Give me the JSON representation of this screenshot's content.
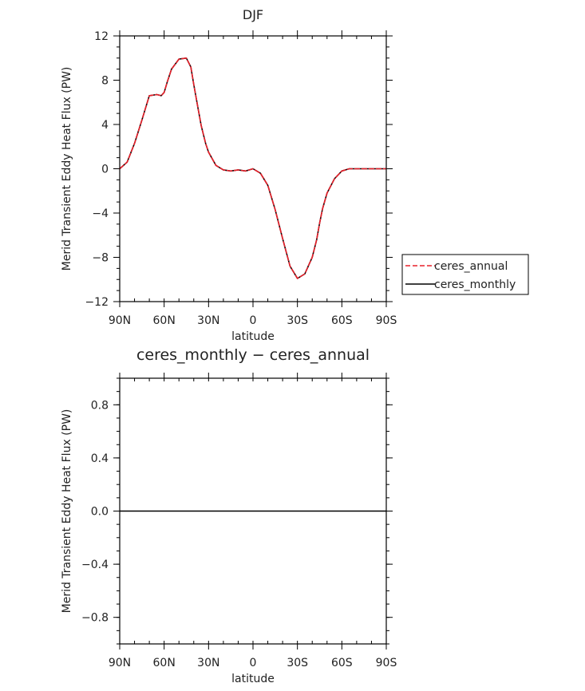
{
  "chart_data": [
    {
      "type": "line",
      "title": "DJF",
      "xlabel": "latitude",
      "ylabel": "Merid Transient Eddy Heat Flux (PW)",
      "xlim": [
        90,
        -90
      ],
      "ylim": [
        -12,
        12
      ],
      "x_ticks": [
        {
          "value": 90,
          "label": "90N"
        },
        {
          "value": 60,
          "label": "60N"
        },
        {
          "value": 30,
          "label": "30N"
        },
        {
          "value": 0,
          "label": "0"
        },
        {
          "value": -30,
          "label": "30S"
        },
        {
          "value": -60,
          "label": "60S"
        },
        {
          "value": -90,
          "label": "90S"
        }
      ],
      "y_ticks": [
        {
          "value": 12,
          "label": "12"
        },
        {
          "value": 8,
          "label": "8"
        },
        {
          "value": 4,
          "label": "4"
        },
        {
          "value": 0,
          "label": "0"
        },
        {
          "value": -4,
          "label": "−4"
        },
        {
          "value": -8,
          "label": "−8"
        },
        {
          "value": -12,
          "label": "−12"
        }
      ],
      "legend": {
        "placement": "right",
        "entries": [
          "ceres_annual",
          "ceres_monthly"
        ]
      },
      "x": [
        90,
        85,
        80,
        75,
        70,
        65,
        62,
        60,
        58,
        55,
        50,
        45,
        42,
        40,
        37,
        35,
        32,
        30,
        25,
        20,
        15,
        10,
        5,
        0,
        -5,
        -10,
        -15,
        -20,
        -25,
        -30,
        -35,
        -40,
        -43,
        -45,
        -47,
        -50,
        -55,
        -60,
        -65,
        -70,
        -75,
        -80,
        -85,
        -90
      ],
      "series": [
        {
          "name": "ceres_annual",
          "color": "#e8202a",
          "dash": "dashed",
          "values": [
            0,
            0.6,
            2.3,
            4.4,
            6.6,
            6.7,
            6.6,
            6.9,
            7.8,
            9.0,
            9.9,
            10.0,
            9.2,
            7.6,
            5.4,
            3.9,
            2.3,
            1.5,
            0.3,
            -0.1,
            -0.2,
            -0.1,
            -0.2,
            0.0,
            -0.4,
            -1.5,
            -3.7,
            -6.3,
            -8.8,
            -9.9,
            -9.5,
            -8.0,
            -6.4,
            -4.9,
            -3.6,
            -2.2,
            -0.9,
            -0.2,
            0,
            0,
            0,
            0,
            0,
            0
          ]
        },
        {
          "name": "ceres_monthly",
          "color": "#000000",
          "dash": "solid",
          "values": [
            0,
            0.6,
            2.3,
            4.4,
            6.6,
            6.7,
            6.6,
            6.9,
            7.8,
            9.0,
            9.9,
            10.0,
            9.2,
            7.6,
            5.4,
            3.9,
            2.3,
            1.5,
            0.3,
            -0.1,
            -0.2,
            -0.1,
            -0.2,
            0.0,
            -0.4,
            -1.5,
            -3.7,
            -6.3,
            -8.8,
            -9.9,
            -9.5,
            -8.0,
            -6.4,
            -4.9,
            -3.6,
            -2.2,
            -0.9,
            -0.2,
            0,
            0,
            0,
            0,
            0,
            0
          ]
        }
      ]
    },
    {
      "type": "line",
      "title": "ceres_monthly − ceres_annual",
      "xlabel": "latitude",
      "ylabel": "Merid Transient Eddy Heat Flux (PW)",
      "xlim": [
        90,
        -90
      ],
      "ylim": [
        -1,
        1
      ],
      "x_ticks": [
        {
          "value": 90,
          "label": "90N"
        },
        {
          "value": 60,
          "label": "60N"
        },
        {
          "value": 30,
          "label": "30N"
        },
        {
          "value": 0,
          "label": "0"
        },
        {
          "value": -30,
          "label": "30S"
        },
        {
          "value": -60,
          "label": "60S"
        },
        {
          "value": -90,
          "label": "90S"
        }
      ],
      "y_ticks": [
        {
          "value": 0.8,
          "label": "0.8"
        },
        {
          "value": 0.4,
          "label": "0.4"
        },
        {
          "value": 0.0,
          "label": "0.0"
        },
        {
          "value": -0.4,
          "label": "−0.4"
        },
        {
          "value": -0.8,
          "label": "−0.8"
        }
      ],
      "x": [
        90,
        -90
      ],
      "series": [
        {
          "color": "#000000",
          "dash": "solid",
          "values": [
            0,
            0
          ]
        }
      ]
    }
  ]
}
